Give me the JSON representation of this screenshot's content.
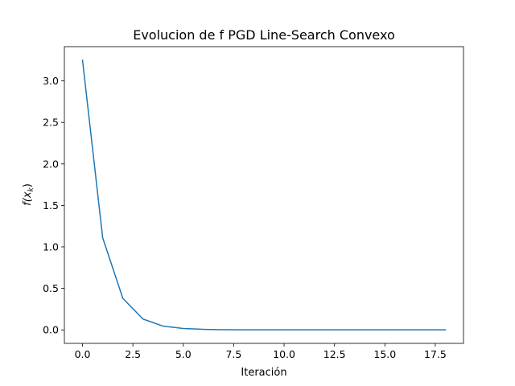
{
  "chart_data": {
    "type": "line",
    "title": "Evolucion de f PGD Line-Search Convexo",
    "xlabel": "Iteración",
    "ylabel": {
      "base": "f(x",
      "subscript": "k",
      "suffix": ")"
    },
    "xlim": [
      -0.9,
      18.9
    ],
    "ylim": [
      -0.163,
      3.413
    ],
    "xticks": [
      0.0,
      2.5,
      5.0,
      7.5,
      10.0,
      12.5,
      15.0,
      17.5
    ],
    "xtick_labels": [
      "0.0",
      "2.5",
      "5.0",
      "7.5",
      "10.0",
      "12.5",
      "15.0",
      "17.5"
    ],
    "yticks": [
      0.0,
      0.5,
      1.0,
      1.5,
      2.0,
      2.5,
      3.0
    ],
    "ytick_labels": [
      "0.0",
      "0.5",
      "1.0",
      "1.5",
      "2.0",
      "2.5",
      "3.0"
    ],
    "grid": false,
    "legend": "none",
    "series": [
      {
        "color": "#1f77b4",
        "x": [
          0,
          1,
          2,
          3,
          4,
          5,
          6,
          7,
          8,
          9,
          10,
          11,
          12,
          13,
          14,
          15,
          16,
          17,
          18
        ],
        "y": [
          3.25,
          1.11,
          0.38,
          0.13,
          0.045,
          0.016,
          0.006,
          0.002,
          0.001,
          0.0004,
          0.0001,
          5e-05,
          2e-05,
          1e-05,
          0.0,
          0.0,
          0.0,
          0.0,
          0.0
        ]
      }
    ]
  }
}
